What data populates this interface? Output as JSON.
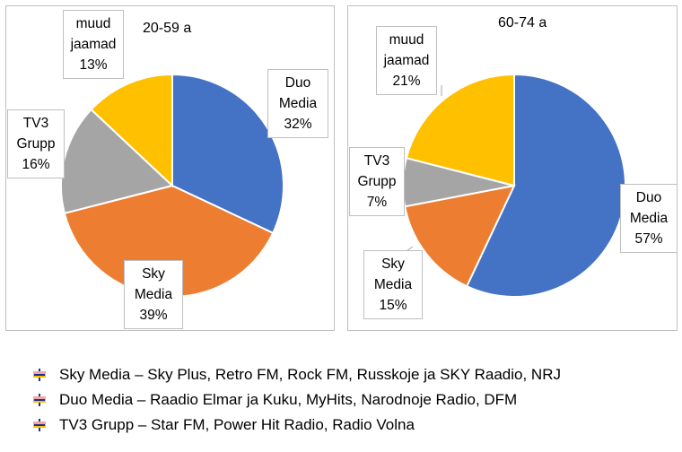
{
  "chart_data": [
    {
      "type": "pie",
      "title": "20-59 a",
      "slices": [
        {
          "name": "Duo Media",
          "label_lines": [
            "Duo",
            "Media"
          ],
          "value": 32,
          "value_label": "32%",
          "color": "#4472c4"
        },
        {
          "name": "Sky Media",
          "label_lines": [
            "Sky",
            "Media"
          ],
          "value": 39,
          "value_label": "39%",
          "color": "#ed7d31"
        },
        {
          "name": "TV3 Grupp",
          "label_lines": [
            "TV3",
            "Grupp"
          ],
          "value": 16,
          "value_label": "16%",
          "color": "#a5a5a5"
        },
        {
          "name": "muud jaamad",
          "label_lines": [
            "muud",
            "jaamad"
          ],
          "value": 13,
          "value_label": "13%",
          "color": "#ffc000"
        }
      ]
    },
    {
      "type": "pie",
      "title": "60-74 a",
      "slices": [
        {
          "name": "Duo Media",
          "label_lines": [
            "Duo",
            "Media"
          ],
          "value": 57,
          "value_label": "57%",
          "color": "#4472c4"
        },
        {
          "name": "Sky Media",
          "label_lines": [
            "Sky",
            "Media"
          ],
          "value": 15,
          "value_label": "15%",
          "color": "#ed7d31"
        },
        {
          "name": "TV3 Grupp",
          "label_lines": [
            "TV3",
            "Grupp"
          ],
          "value": 7,
          "value_label": "7%",
          "color": "#a5a5a5"
        },
        {
          "name": "muud jaamad",
          "label_lines": [
            "muud",
            "jaamad"
          ],
          "value": 21,
          "value_label": "21%",
          "color": "#ffc000"
        }
      ]
    }
  ],
  "legend": [
    {
      "text": "Sky Media – Sky Plus, Retro FM, Rock FM, Russkoje ja SKY Raadio, NRJ"
    },
    {
      "text": "Duo Media – Raadio Elmar ja Kuku, MyHits, Narodnoje Radio, DFM"
    },
    {
      "text": "TV3 Grupp – Star FM, Power Hit Radio, Radio Volna"
    }
  ],
  "legend_bullet": {
    "icon": "flag-bullet-icon",
    "colors": [
      "#f4a6a6",
      "#ffc000",
      "#1f2f8f"
    ]
  }
}
